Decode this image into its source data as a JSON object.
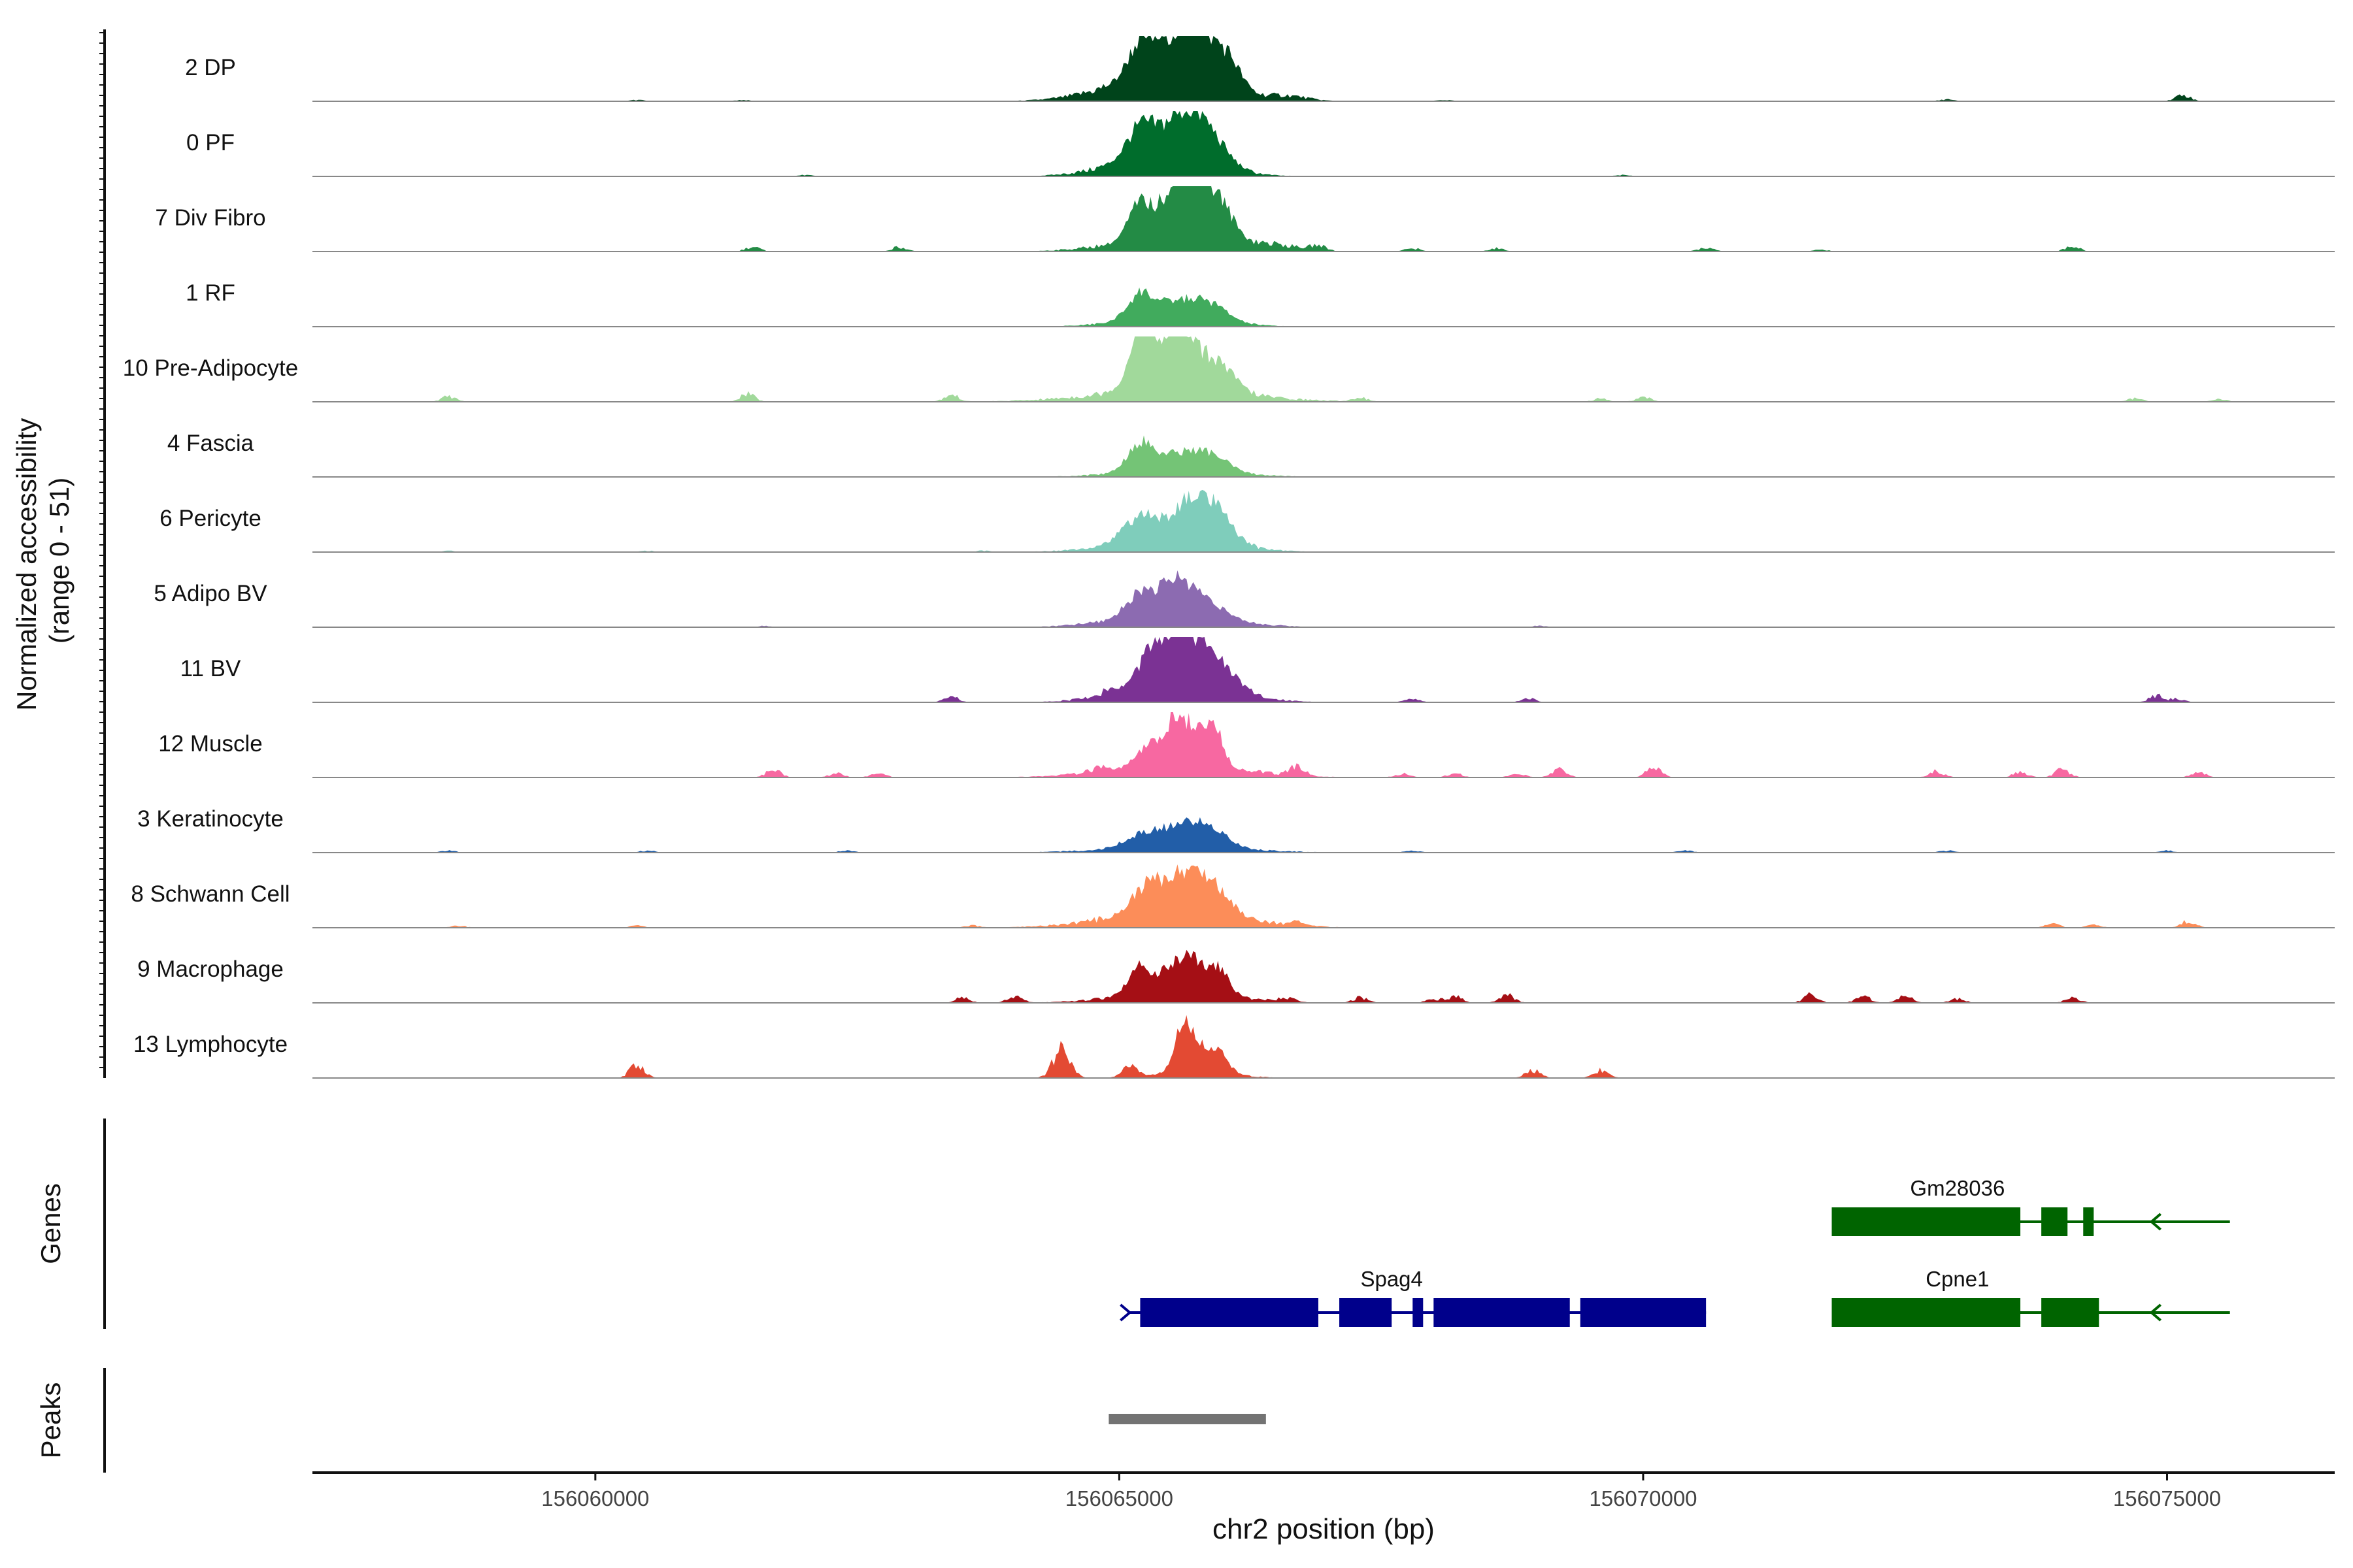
{
  "chart_data": {
    "type": "area",
    "chromosome": "chr2",
    "xlabel": "chr2 position (bp)",
    "xlim": [
      156057300,
      156076600
    ],
    "x_ticks": [
      156060000,
      156065000,
      156070000,
      156075000
    ],
    "x_tick_labels": [
      "156060000",
      "156065000",
      "156070000",
      "156075000"
    ],
    "y_axis_title_line1": "Normalized accessibility",
    "y_axis_title_line2": "(range 0 - 51)",
    "y_range": [
      0,
      51
    ],
    "tracks": [
      {
        "name": "2 DP",
        "color": "#00441b",
        "peaks": [
          [
            156065200,
            0.48,
            120
          ],
          [
            156065550,
            0.62,
            200
          ],
          [
            156065800,
            0.52,
            150
          ],
          [
            156066050,
            0.42,
            120
          ],
          [
            156065400,
            0.38,
            500
          ],
          [
            156066600,
            0.07,
            200
          ]
        ],
        "islands": [
          [
            156060400,
            0.02
          ],
          [
            156061400,
            0.02
          ],
          [
            156068100,
            0.02
          ],
          [
            156072900,
            0.03
          ],
          [
            156075150,
            0.1
          ]
        ]
      },
      {
        "name": "0 PF",
        "color": "#006d2c",
        "peaks": [
          [
            156065200,
            0.45,
            130
          ],
          [
            156065600,
            0.58,
            190
          ],
          [
            156065850,
            0.38,
            180
          ],
          [
            156065400,
            0.32,
            450
          ]
        ],
        "islands": [
          [
            156062000,
            0.02
          ],
          [
            156069800,
            0.02
          ]
        ]
      },
      {
        "name": "7 Div Fibro",
        "color": "#238b45",
        "peaks": [
          [
            156065200,
            0.55,
            110
          ],
          [
            156065580,
            0.95,
            150
          ],
          [
            156065780,
            0.68,
            150
          ],
          [
            156066000,
            0.35,
            120
          ],
          [
            156065450,
            0.2,
            500
          ],
          [
            156066400,
            0.1,
            300
          ]
        ],
        "islands": [
          [
            156061500,
            0.07
          ],
          [
            156062900,
            0.07
          ],
          [
            156066900,
            0.07
          ],
          [
            156067800,
            0.05
          ],
          [
            156068600,
            0.05
          ],
          [
            156070600,
            0.06
          ],
          [
            156071700,
            0.03
          ],
          [
            156074100,
            0.08
          ]
        ]
      },
      {
        "name": "1 RF",
        "color": "#41ab5d",
        "peaks": [
          [
            156065200,
            0.38,
            120
          ],
          [
            156065600,
            0.25,
            200
          ],
          [
            156065900,
            0.18,
            150
          ],
          [
            156065500,
            0.15,
            450
          ]
        ],
        "islands": []
      },
      {
        "name": "10 Pre-Adipocyte",
        "color": "#a1d99b",
        "peaks": [
          [
            156065200,
            0.85,
            80
          ],
          [
            156065580,
            0.75,
            100
          ],
          [
            156065350,
            0.55,
            200
          ],
          [
            156065800,
            0.4,
            150
          ],
          [
            156066000,
            0.25,
            150
          ],
          [
            156065500,
            0.18,
            700
          ]
        ],
        "islands": [
          [
            156058600,
            0.08
          ],
          [
            156061450,
            0.12
          ],
          [
            156063400,
            0.1
          ],
          [
            156067300,
            0.06
          ],
          [
            156069600,
            0.05
          ],
          [
            156070000,
            0.07
          ],
          [
            156074700,
            0.05
          ],
          [
            156075500,
            0.04
          ]
        ]
      },
      {
        "name": "4 Fascia",
        "color": "#74c476",
        "peaks": [
          [
            156065200,
            0.42,
            120
          ],
          [
            156065600,
            0.25,
            200
          ],
          [
            156065900,
            0.18,
            150
          ],
          [
            156065550,
            0.12,
            500
          ]
        ],
        "islands": []
      },
      {
        "name": "6 Pericyte",
        "color": "#7fcdbb",
        "peaks": [
          [
            156065200,
            0.35,
            150
          ],
          [
            156065700,
            0.55,
            180
          ],
          [
            156065950,
            0.3,
            150
          ],
          [
            156065500,
            0.25,
            500
          ]
        ],
        "islands": [
          [
            156058600,
            0.02
          ],
          [
            156060500,
            0.02
          ],
          [
            156063700,
            0.02
          ]
        ]
      },
      {
        "name": "5 Adipo BV",
        "color": "#8c6bb1",
        "peaks": [
          [
            156065200,
            0.35,
            130
          ],
          [
            156065550,
            0.5,
            150
          ],
          [
            156065850,
            0.22,
            150
          ],
          [
            156065500,
            0.22,
            500
          ]
        ],
        "islands": [
          [
            156061600,
            0.02
          ],
          [
            156069000,
            0.02
          ]
        ]
      },
      {
        "name": "11 BV",
        "color": "#7b3294",
        "peaks": [
          [
            156065300,
            0.45,
            130
          ],
          [
            156065550,
            0.65,
            140
          ],
          [
            156065800,
            0.48,
            150
          ],
          [
            156066000,
            0.25,
            100
          ],
          [
            156065550,
            0.3,
            500
          ]
        ],
        "islands": [
          [
            156063400,
            0.08
          ],
          [
            156064900,
            0.07
          ],
          [
            156066200,
            0.07
          ],
          [
            156067800,
            0.06
          ],
          [
            156068900,
            0.06
          ],
          [
            156074900,
            0.1
          ],
          [
            156075100,
            0.05
          ]
        ]
      },
      {
        "name": "12 Muscle",
        "color": "#f768a1",
        "peaks": [
          [
            156065550,
            0.55,
            100
          ],
          [
            156065900,
            0.5,
            90
          ],
          [
            156065300,
            0.3,
            120
          ],
          [
            156065700,
            0.35,
            150
          ],
          [
            156065550,
            0.2,
            600
          ]
        ],
        "islands": [
          [
            156061700,
            0.12
          ],
          [
            156062300,
            0.06
          ],
          [
            156062700,
            0.06
          ],
          [
            156064800,
            0.06
          ],
          [
            156066700,
            0.14
          ],
          [
            156067700,
            0.06
          ],
          [
            156068200,
            0.06
          ],
          [
            156068800,
            0.06
          ],
          [
            156069200,
            0.12
          ],
          [
            156070100,
            0.15
          ],
          [
            156072800,
            0.1
          ],
          [
            156073600,
            0.08
          ],
          [
            156074000,
            0.12
          ],
          [
            156075300,
            0.08
          ]
        ]
      },
      {
        "name": "3 Keratinocyte",
        "color": "#225ea8",
        "peaks": [
          [
            156065250,
            0.2,
            180
          ],
          [
            156065650,
            0.3,
            200
          ],
          [
            156065900,
            0.18,
            150
          ],
          [
            156065550,
            0.1,
            600
          ]
        ],
        "islands": [
          [
            156058600,
            0.03
          ],
          [
            156060500,
            0.03
          ],
          [
            156062400,
            0.03
          ],
          [
            156067800,
            0.03
          ],
          [
            156070400,
            0.03
          ],
          [
            156072900,
            0.03
          ],
          [
            156075000,
            0.03
          ]
        ]
      },
      {
        "name": "8 Schwann Cell",
        "color": "#fc8d59",
        "peaks": [
          [
            156065250,
            0.35,
            130
          ],
          [
            156065600,
            0.55,
            180
          ],
          [
            156065900,
            0.35,
            150
          ],
          [
            156065550,
            0.28,
            600
          ]
        ],
        "islands": [
          [
            156058700,
            0.03
          ],
          [
            156060400,
            0.03
          ],
          [
            156063600,
            0.03
          ],
          [
            156066700,
            0.04
          ],
          [
            156073900,
            0.06
          ],
          [
            156074300,
            0.04
          ],
          [
            156075200,
            0.1
          ]
        ]
      },
      {
        "name": "9 Macrophage",
        "color": "#a50f15",
        "peaks": [
          [
            156065200,
            0.45,
            100
          ],
          [
            156065500,
            0.35,
            100
          ],
          [
            156065700,
            0.5,
            90
          ],
          [
            156065950,
            0.4,
            90
          ],
          [
            156065550,
            0.2,
            500
          ]
        ],
        "islands": [
          [
            156063500,
            0.08
          ],
          [
            156064000,
            0.1
          ],
          [
            156066600,
            0.06
          ],
          [
            156067300,
            0.08
          ],
          [
            156068000,
            0.06
          ],
          [
            156068200,
            0.1
          ],
          [
            156068700,
            0.12
          ],
          [
            156071600,
            0.12
          ],
          [
            156072100,
            0.1
          ],
          [
            156072500,
            0.1
          ],
          [
            156073000,
            0.06
          ],
          [
            156074100,
            0.08
          ]
        ]
      },
      {
        "name": "13 Lymphocyte",
        "color": "#e34a33",
        "peaks": [
          [
            156064450,
            0.45,
            80
          ],
          [
            156065600,
            0.7,
            70
          ],
          [
            156065750,
            0.35,
            80
          ],
          [
            156065950,
            0.3,
            80
          ],
          [
            156065750,
            0.15,
            300
          ]
        ],
        "islands": [
          [
            156060400,
            0.2
          ],
          [
            156065100,
            0.18
          ],
          [
            156068950,
            0.12
          ],
          [
            156069600,
            0.12
          ]
        ]
      }
    ],
    "genes_label": "Genes",
    "genes": [
      {
        "name": "Gm28036",
        "color": "#006400",
        "row": 0,
        "start": 156071800,
        "end": 156075600,
        "strand": "-",
        "exons": [
          [
            156071800,
            156073600
          ],
          [
            156073800,
            156074050
          ],
          [
            156074200,
            156074300
          ]
        ]
      },
      {
        "name": "Spag4",
        "color": "#00008b",
        "row": 1,
        "start": 156065100,
        "end": 156070600,
        "strand": "+",
        "exons": [
          [
            156065200,
            156066900
          ],
          [
            156067100,
            156067600
          ],
          [
            156067800,
            156067900
          ],
          [
            156068000,
            156069300
          ],
          [
            156069400,
            156070600
          ]
        ]
      },
      {
        "name": "Cpne1",
        "color": "#006400",
        "row": 1,
        "start": 156071800,
        "end": 156075600,
        "strand": "-",
        "exons": [
          [
            156071800,
            156073600
          ],
          [
            156073800,
            156074350
          ]
        ]
      }
    ],
    "peaks_label": "Peaks",
    "peak_regions": [
      [
        156064900,
        156066400
      ]
    ],
    "peak_color": "#737373"
  }
}
